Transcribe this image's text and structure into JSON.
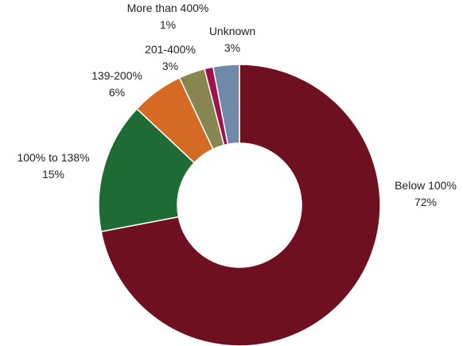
{
  "chart_data": {
    "type": "pie",
    "donut": true,
    "title": "",
    "slices": [
      {
        "label": "Below 100%",
        "value": 72,
        "value_label": "72%",
        "color": "#6f1020"
      },
      {
        "label": "100% to 138%",
        "value": 15,
        "value_label": "15%",
        "color": "#1e6b35"
      },
      {
        "label": "139-200%",
        "value": 6,
        "value_label": "6%",
        "color": "#d46a24"
      },
      {
        "label": "201-400%",
        "value": 3,
        "value_label": "3%",
        "color": "#878650"
      },
      {
        "label": "More than 400%",
        "value": 1,
        "value_label": "1%",
        "color": "#a2124a"
      },
      {
        "label": "Unknown",
        "value": 3,
        "value_label": "3%",
        "color": "#7189a9"
      }
    ],
    "legend": "none"
  }
}
